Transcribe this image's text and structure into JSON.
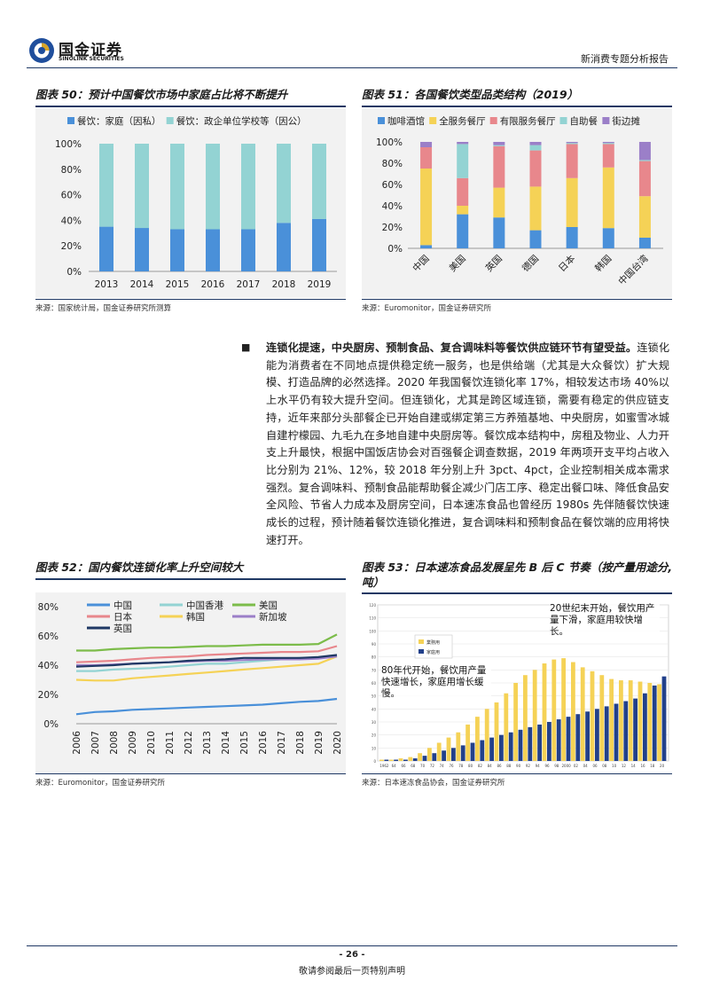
{
  "header": {
    "logo_cn": "国金证券",
    "logo_en": "SINOLINK SECURITIES",
    "report_type": "新消费专题分析报告"
  },
  "figures": {
    "fig50": {
      "title": "图表 50：预计中国餐饮市场中家庭占比将不断提升",
      "source": "来源：国家统计局，国金证券研究所测算"
    },
    "fig51": {
      "title": "图表 51：各国餐饮类型品类结构（2019）",
      "source": "来源：Euromonitor，国金证券研究所"
    },
    "fig52": {
      "title": "图表 52：国内餐饮连锁化率上升空间较大",
      "source": "来源：Euromonitor，国金证券研究所"
    },
    "fig53": {
      "title": "图表 53：日本速冻食品发展呈先 B 后 C 节奏（按产量用途分,吨）",
      "source": "来源：日本速冻食品协会，国金证券研究所",
      "annotation_top": "20世纪末开始，餐饮用产量下滑，家庭用较快增长。",
      "annotation_mid": "80年代开始，餐饮用产量快速增长，家庭用增长缓慢。",
      "legend": [
        "業務用",
        "家庭用"
      ]
    }
  },
  "bullet": {
    "marker": "■",
    "lead": "连锁化提速，中央厨房、预制食品、复合调味料等餐饮供应链环节有望受益。",
    "body": "连锁化能为消费者在不同地点提供稳定统一服务，也是供给端（尤其是大众餐饮）扩大规模、打造品牌的必然选择。2020 年我国餐饮连锁化率 17%，相较发达市场 40%以上水平仍有较大提升空间。但连锁化，尤其是跨区域连锁，需要有稳定的供应链支持，近年来部分头部餐企已开始自建或绑定第三方养殖基地、中央厨房，如蜜雪冰城自建柠檬园、九毛九在多地自建中央厨房等。餐饮成本结构中，房租及物业、人力开支上升最快，根据中国饭店协会对百强餐企调查数据，2019 年两项开支平均占收入比分别为 21%、12%，较 2018 年分别上升 3pct、4pct，企业控制相关成本需求强烈。复合调味料、预制食品能帮助餐企减少门店工序、稳定出餐口味、降低食品安全风险、节省人力成本及厨房空间，日本速冻食品也曾经历 1980s 先伴随餐饮快速成长的过程，预计随着餐饮连锁化推进，复合调味料和预制食品在餐饮端的应用将快速打开。"
  },
  "footer": {
    "page": "- 26 -",
    "disclaimer": "敬请参阅最后一页特别声明"
  },
  "colors": {
    "navy": "#1f3864",
    "blue": "#4a90d9",
    "teal": "#93d3d3",
    "yellow": "#f5d256",
    "pink": "#e8878c",
    "purple": "#9b7fc8",
    "green": "#7cbc4a",
    "gray": "#b0b0b0",
    "darkblue": "#22408a"
  },
  "chart_data": [
    {
      "id": "fig50",
      "type": "bar",
      "stacked": true,
      "categories": [
        "2013",
        "2014",
        "2015",
        "2016",
        "2017",
        "2018",
        "2019"
      ],
      "series": [
        {
          "name": "餐饮：家庭（因私）",
          "values": [
            35,
            34,
            33,
            33,
            33,
            38,
            41
          ]
        },
        {
          "name": "餐饮：政企单位学校等（因公）",
          "values": [
            65,
            66,
            67,
            67,
            67,
            62,
            59
          ]
        }
      ],
      "ylim": [
        0,
        100
      ],
      "yticks": [
        "0%",
        "20%",
        "40%",
        "60%",
        "80%",
        "100%"
      ],
      "legend": "top"
    },
    {
      "id": "fig51",
      "type": "bar",
      "stacked": true,
      "categories": [
        "中国",
        "美国",
        "英国",
        "德国",
        "日本",
        "韩国",
        "中国台湾"
      ],
      "series": [
        {
          "name": "咖啡酒馆",
          "values": [
            3,
            32,
            29,
            17,
            20,
            19,
            10
          ]
        },
        {
          "name": "全服务餐厅",
          "values": [
            72,
            8,
            28,
            41,
            46,
            57,
            39
          ]
        },
        {
          "name": "有限服务餐厅",
          "values": [
            20,
            26,
            39,
            34,
            32,
            22,
            33
          ]
        },
        {
          "name": "自助餐",
          "values": [
            0,
            32,
            1,
            5,
            1,
            1,
            1
          ]
        },
        {
          "name": "街边摊",
          "values": [
            5,
            2,
            3,
            3,
            1,
            1,
            17
          ]
        }
      ],
      "ylim": [
        0,
        100
      ],
      "yticks": [
        "0%",
        "20%",
        "40%",
        "60%",
        "80%",
        "100%"
      ],
      "legend": "top"
    },
    {
      "id": "fig52",
      "type": "line",
      "x": [
        "2006",
        "2007",
        "2008",
        "2009",
        "2010",
        "2011",
        "2012",
        "2013",
        "2014",
        "2015",
        "2016",
        "2017",
        "2018",
        "2019",
        "2020"
      ],
      "series": [
        {
          "name": "中国",
          "values": [
            6.5,
            8,
            8.5,
            9.5,
            10,
            10.5,
            11,
            11.5,
            12,
            12.5,
            13,
            14,
            15,
            15.5,
            17
          ]
        },
        {
          "name": "中国香港",
          "values": [
            36,
            36,
            37,
            37.5,
            38,
            39,
            40,
            41,
            41,
            42,
            43,
            44,
            45,
            45,
            46
          ]
        },
        {
          "name": "美国",
          "values": [
            50,
            50,
            51,
            51.5,
            52,
            52,
            52.5,
            53,
            53,
            53.5,
            54,
            54,
            54,
            54.5,
            61
          ]
        },
        {
          "name": "日本",
          "values": [
            42,
            42.5,
            43,
            44,
            45,
            45.5,
            46,
            47,
            47.5,
            48,
            48.5,
            49,
            49,
            49.5,
            53
          ]
        },
        {
          "name": "韩国",
          "values": [
            30,
            29.5,
            29.5,
            31,
            32,
            33,
            34,
            35,
            36,
            37,
            38,
            39,
            40,
            41,
            46
          ]
        },
        {
          "name": "新加坡",
          "values": [
            40,
            40,
            40.5,
            41,
            41.5,
            42,
            42.5,
            43,
            43,
            43.5,
            44,
            44,
            44,
            44.5,
            46
          ]
        },
        {
          "name": "英国",
          "values": [
            39,
            39.5,
            40,
            41,
            41.5,
            42,
            43,
            43.5,
            44,
            45,
            45,
            45,
            45,
            45.5,
            47
          ]
        }
      ],
      "ylim": [
        0,
        80
      ],
      "yticks": [
        "0%",
        "20%",
        "40%",
        "60%",
        "80%"
      ],
      "legend": "top-left"
    },
    {
      "id": "fig53",
      "type": "bar",
      "stacked": false,
      "x": [
        "1962",
        "64",
        "66",
        "68",
        "70",
        "72",
        "74",
        "76",
        "78",
        "80",
        "82",
        "84",
        "86",
        "88",
        "90",
        "92",
        "94",
        "96",
        "98",
        "2000",
        "02",
        "04",
        "06",
        "08",
        "10",
        "12",
        "14",
        "16",
        "18",
        "20"
      ],
      "series": [
        {
          "name": "業務用",
          "values": [
            1,
            1,
            2,
            3,
            6,
            10,
            14,
            18,
            22,
            28,
            34,
            40,
            45,
            52,
            60,
            66,
            70,
            75,
            78,
            79,
            76,
            72,
            69,
            66,
            63,
            62,
            62,
            61,
            60,
            59
          ]
        },
        {
          "name": "家庭用",
          "values": [
            1,
            1,
            1,
            2,
            4,
            6,
            8,
            10,
            12,
            14,
            16,
            18,
            20,
            22,
            24,
            26,
            28,
            30,
            32,
            34,
            36,
            38,
            40,
            42,
            44,
            46,
            48,
            52,
            58,
            65
          ]
        }
      ],
      "ylim": [
        0,
        120
      ],
      "legend": "top-left"
    }
  ]
}
